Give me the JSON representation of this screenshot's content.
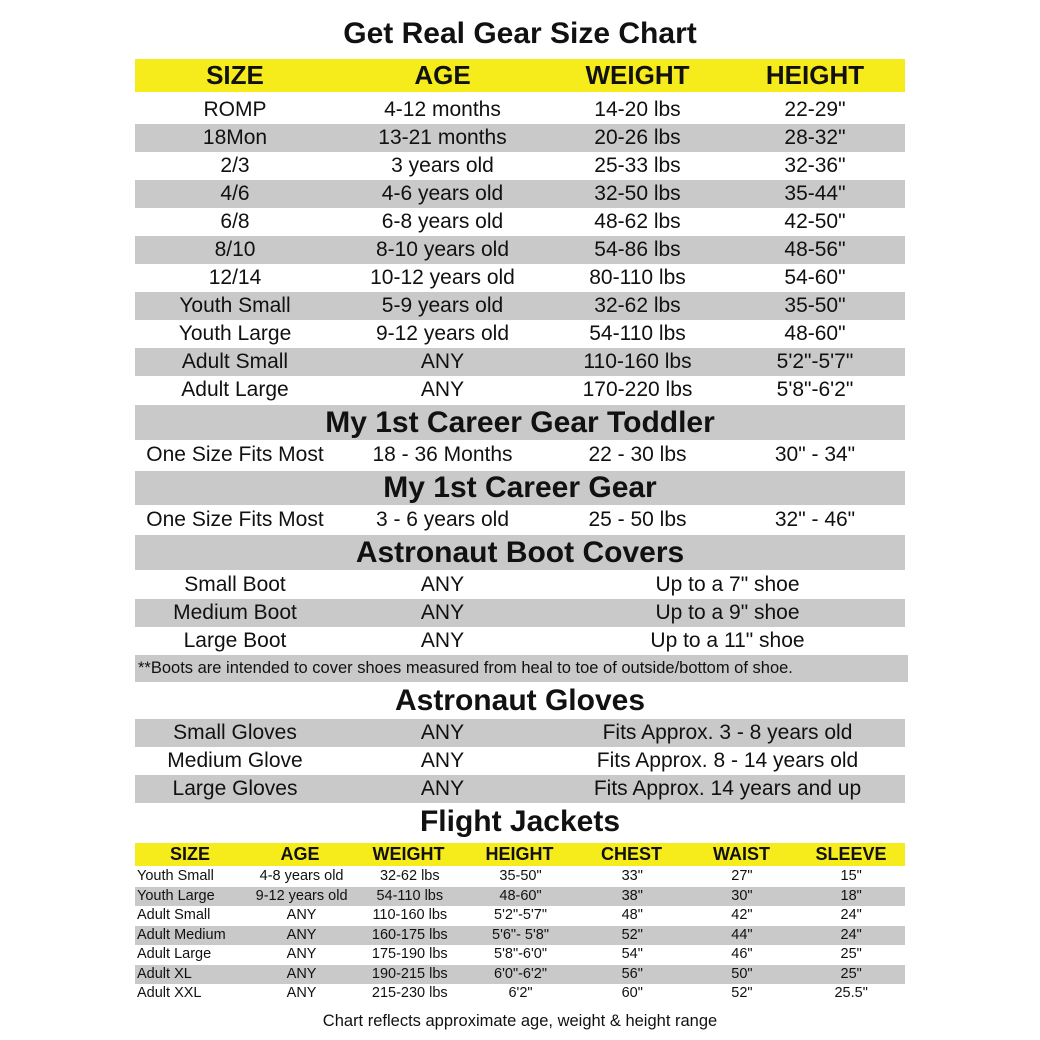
{
  "title": "Get Real Gear Size Chart",
  "colors": {
    "header_yellow": "#f6ec1c",
    "stripe_gray": "#c9c9c9"
  },
  "main_table": {
    "headers": [
      "SIZE",
      "AGE",
      "WEIGHT",
      "HEIGHT"
    ],
    "rows": [
      [
        "ROMP",
        "4-12 months",
        "14-20 lbs",
        "22-29\""
      ],
      [
        "18Mon",
        "13-21 months",
        "20-26 lbs",
        "28-32\""
      ],
      [
        "2/3",
        "3 years old",
        "25-33 lbs",
        "32-36\""
      ],
      [
        "4/6",
        "4-6 years old",
        "32-50 lbs",
        "35-44\""
      ],
      [
        "6/8",
        "6-8 years old",
        "48-62 lbs",
        "42-50\""
      ],
      [
        "8/10",
        "8-10 years old",
        "54-86 lbs",
        "48-56\""
      ],
      [
        "12/14",
        "10-12 years old",
        "80-110 lbs",
        "54-60\""
      ],
      [
        "Youth Small",
        "5-9 years old",
        "32-62 lbs",
        "35-50\""
      ],
      [
        "Youth Large",
        "9-12 years old",
        "54-110 lbs",
        "48-60\""
      ],
      [
        "Adult Small",
        "ANY",
        "110-160 lbs",
        "5'2\"-5'7\""
      ],
      [
        "Adult Large",
        "ANY",
        "170-220 lbs",
        "5'8\"-6'2\""
      ]
    ]
  },
  "toddler": {
    "heading": "My 1st Career Gear Toddler",
    "row": [
      "One Size Fits Most",
      "18 - 36 Months",
      "22 - 30 lbs",
      "30\" - 34\""
    ]
  },
  "career": {
    "heading": "My 1st Career Gear",
    "row": [
      "One Size Fits Most",
      "3 - 6 years old",
      "25 - 50 lbs",
      "32\" - 46\""
    ]
  },
  "boots": {
    "heading": "Astronaut  Boot Covers",
    "rows": [
      [
        "Small Boot",
        "ANY",
        "Up to a 7\" shoe"
      ],
      [
        "Medium Boot",
        "ANY",
        "Up to a 9\" shoe"
      ],
      [
        "Large Boot",
        "ANY",
        "Up to a 11\" shoe"
      ]
    ],
    "note": "**Boots are intended to cover shoes measured from heal to toe of outside/bottom of shoe."
  },
  "gloves": {
    "heading": "Astronaut Gloves",
    "rows": [
      [
        "Small Gloves",
        "ANY",
        "Fits Approx. 3 - 8 years old"
      ],
      [
        "Medium Glove",
        "ANY",
        "Fits Approx. 8 - 14 years old"
      ],
      [
        "Large Gloves",
        "ANY",
        "Fits Approx. 14 years and up"
      ]
    ]
  },
  "jackets": {
    "heading": "Flight Jackets",
    "headers": [
      "SIZE",
      "AGE",
      "WEIGHT",
      "HEIGHT",
      "CHEST",
      "WAIST",
      "SLEEVE"
    ],
    "rows": [
      [
        "Youth Small",
        "4-8 years old",
        "32-62 lbs",
        "35-50\"",
        "33\"",
        "27\"",
        "15\""
      ],
      [
        "Youth Large",
        "9-12 years old",
        "54-110 lbs",
        "48-60\"",
        "38\"",
        "30\"",
        "18\""
      ],
      [
        "Adult Small",
        "ANY",
        "110-160 lbs",
        "5'2\"-5'7\"",
        "48\"",
        "42\"",
        "24\""
      ],
      [
        "Adult Medium",
        "ANY",
        "160-175 lbs",
        "5'6\"- 5'8\"",
        "52\"",
        "44\"",
        "24\""
      ],
      [
        "Adult Large",
        "ANY",
        "175-190 lbs",
        "5'8\"-6'0\"",
        "54\"",
        "46\"",
        "25\""
      ],
      [
        "Adult XL",
        "ANY",
        "190-215 lbs",
        "6'0\"-6'2\"",
        "56\"",
        "50\"",
        "25\""
      ],
      [
        "Adult XXL",
        "ANY",
        "215-230 lbs",
        "6'2\"",
        "60\"",
        "52\"",
        "25.5\""
      ]
    ],
    "footer": "Chart reflects approximate age, weight & height range"
  }
}
